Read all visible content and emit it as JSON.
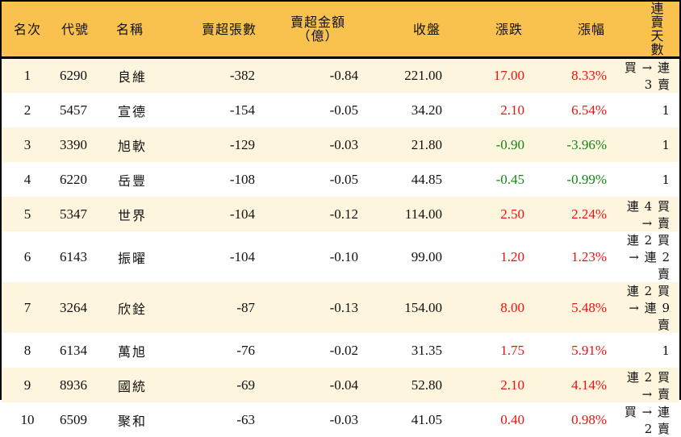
{
  "table": {
    "headers": {
      "rank": "名次",
      "code": "代號",
      "name": "名稱",
      "net_sell_volume": "賣超張數",
      "net_sell_amount_line1": "賣超金額",
      "net_sell_amount_line2": "（億）",
      "close": "收盤",
      "change": "漲跌",
      "change_pct": "漲幅",
      "consecutive_days": "連賣天數"
    },
    "colors": {
      "header_bg": "#F9C24E",
      "odd_row_bg": "#FEF5DF",
      "even_row_bg": "#FFFFFF",
      "up": "#EE1111",
      "down": "#118811",
      "border": "#000000"
    },
    "rows": [
      {
        "rank": "1",
        "code": "6290",
        "name": "良維",
        "volume": "-382",
        "amount": "-0.84",
        "close": "221.00",
        "change": "17.00",
        "pct": "8.33%",
        "dir": "up",
        "days": "買 → 連 3 賣"
      },
      {
        "rank": "2",
        "code": "5457",
        "name": "宣德",
        "volume": "-154",
        "amount": "-0.05",
        "close": "34.20",
        "change": "2.10",
        "pct": "6.54%",
        "dir": "up",
        "days": "1"
      },
      {
        "rank": "3",
        "code": "3390",
        "name": "旭軟",
        "volume": "-129",
        "amount": "-0.03",
        "close": "21.80",
        "change": "-0.90",
        "pct": "-3.96%",
        "dir": "down",
        "days": "1"
      },
      {
        "rank": "4",
        "code": "6220",
        "name": "岳豐",
        "volume": "-108",
        "amount": "-0.05",
        "close": "44.85",
        "change": "-0.45",
        "pct": "-0.99%",
        "dir": "down",
        "days": "1"
      },
      {
        "rank": "5",
        "code": "5347",
        "name": "世界",
        "volume": "-104",
        "amount": "-0.12",
        "close": "114.00",
        "change": "2.50",
        "pct": "2.24%",
        "dir": "up",
        "days": "連 4 買 → 賣"
      },
      {
        "rank": "6",
        "code": "6143",
        "name": "振曜",
        "volume": "-104",
        "amount": "-0.10",
        "close": "99.00",
        "change": "1.20",
        "pct": "1.23%",
        "dir": "up",
        "days": "連 2 買 → 連 2 賣"
      },
      {
        "rank": "7",
        "code": "3264",
        "name": "欣銓",
        "volume": "-87",
        "amount": "-0.13",
        "close": "154.00",
        "change": "8.00",
        "pct": "5.48%",
        "dir": "up",
        "days": "連 2 買 → 連 9 賣"
      },
      {
        "rank": "8",
        "code": "6134",
        "name": "萬旭",
        "volume": "-76",
        "amount": "-0.02",
        "close": "31.35",
        "change": "1.75",
        "pct": "5.91%",
        "dir": "up",
        "days": "1"
      },
      {
        "rank": "9",
        "code": "8936",
        "name": "國統",
        "volume": "-69",
        "amount": "-0.04",
        "close": "52.80",
        "change": "2.10",
        "pct": "4.14%",
        "dir": "up",
        "days": "連 2 買 → 賣"
      },
      {
        "rank": "10",
        "code": "6509",
        "name": "聚和",
        "volume": "-63",
        "amount": "-0.03",
        "close": "41.05",
        "change": "0.40",
        "pct": "0.98%",
        "dir": "up",
        "days": "買 → 連 2 賣"
      }
    ]
  }
}
